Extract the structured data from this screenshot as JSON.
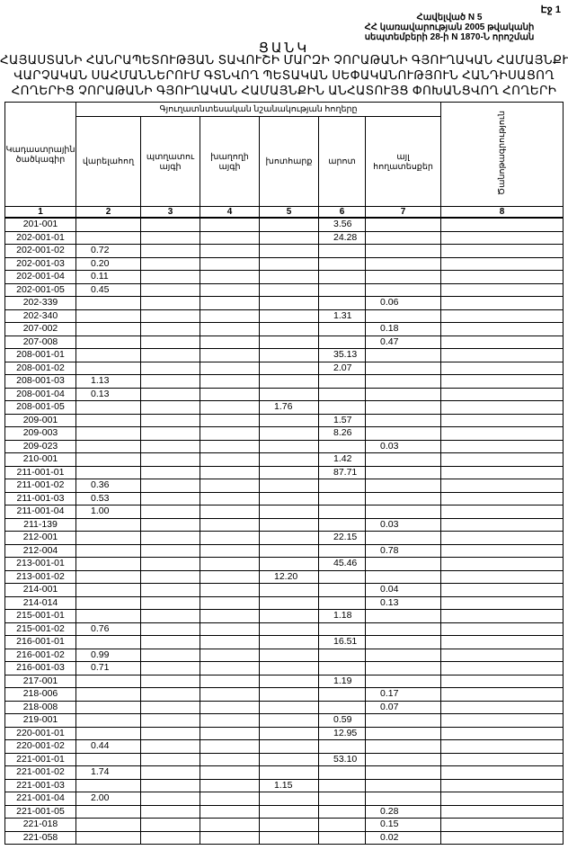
{
  "page_label": "Էջ 1",
  "annex": {
    "line1": "Հավելված N 5",
    "line2": "ՀՀ կառավարության 2005 թվականի",
    "line3": "սեպտեմբերի 28-ի N 1870-Ն որոշման"
  },
  "title": "ՑԱՆԿ",
  "subtitle": [
    "ՀԱՅԱՍՏԱՆԻ ՀԱՆՐԱՊԵՏՈՒԹՅԱՆ ՏԱՎՈՒՇԻ ՄԱՐԶԻ ՉՈՐԱԹԱՆԻ ԳՅՈՒՂԱԿԱՆ ՀԱՄԱՅՆՔԻ",
    "ՎԱՐՉԱԿԱՆ ՍԱՀՄԱՆՆԵՐՈՒՄ ԳՏՆՎՈՂ ՊԵՏԱԿԱՆ ՍԵՓԱԿԱՆՈՒԹՅՈՒՆ ՀԱՆԴԻՍԱՑՈՂ",
    "ՀՈՂԵՐԻՑ ՉՈՐԱԹԱՆԻ ԳՅՈՒՂԱԿԱՆ ՀԱՄԱՅՆՔԻՆ ԱՆՀԱՏՈՒՅՑ ՓՈԽԱՆՑՎՈՂ ՀՈՂԵՐԻ"
  ],
  "table": {
    "code_header": "Կադաստրային ծածկագիր",
    "group_header": "Գյուղատնտեսական նշանակության հողերը",
    "columns": [
      "վարելահող",
      "պտղատու այգի",
      "խաղողի այգի",
      "խոտհարք",
      "արոտ",
      "այլ հողատեսքեր"
    ],
    "note_header": "Ծանոթագրություն",
    "column_numbers": [
      "1",
      "2",
      "3",
      "4",
      "5",
      "6",
      "7",
      "8"
    ],
    "rows": [
      [
        "201-001",
        "",
        "",
        "",
        "",
        "3.56",
        "",
        ""
      ],
      [
        "202-001-01",
        "",
        "",
        "",
        "",
        "24.28",
        "",
        ""
      ],
      [
        "202-001-02",
        "0.72",
        "",
        "",
        "",
        "",
        "",
        ""
      ],
      [
        "202-001-03",
        "0.20",
        "",
        "",
        "",
        "",
        "",
        ""
      ],
      [
        "202-001-04",
        "0.11",
        "",
        "",
        "",
        "",
        "",
        ""
      ],
      [
        "202-001-05",
        "0.45",
        "",
        "",
        "",
        "",
        "",
        ""
      ],
      [
        "202-339",
        "",
        "",
        "",
        "",
        "",
        "0.06",
        ""
      ],
      [
        "202-340",
        "",
        "",
        "",
        "",
        "1.31",
        "",
        ""
      ],
      [
        "207-002",
        "",
        "",
        "",
        "",
        "",
        "0.18",
        ""
      ],
      [
        "207-008",
        "",
        "",
        "",
        "",
        "",
        "0.47",
        ""
      ],
      [
        "208-001-01",
        "",
        "",
        "",
        "",
        "35.13",
        "",
        ""
      ],
      [
        "208-001-02",
        "",
        "",
        "",
        "",
        "2.07",
        "",
        ""
      ],
      [
        "208-001-03",
        "1.13",
        "",
        "",
        "",
        "",
        "",
        ""
      ],
      [
        "208-001-04",
        "0.13",
        "",
        "",
        "",
        "",
        "",
        ""
      ],
      [
        "208-001-05",
        "",
        "",
        "",
        "1.76",
        "",
        "",
        ""
      ],
      [
        "209-001",
        "",
        "",
        "",
        "",
        "1.57",
        "",
        ""
      ],
      [
        "209-003",
        "",
        "",
        "",
        "",
        "8.26",
        "",
        ""
      ],
      [
        "209-023",
        "",
        "",
        "",
        "",
        "",
        "0.03",
        ""
      ],
      [
        "210-001",
        "",
        "",
        "",
        "",
        "1.42",
        "",
        ""
      ],
      [
        "211-001-01",
        "",
        "",
        "",
        "",
        "87.71",
        "",
        ""
      ],
      [
        "211-001-02",
        "0.36",
        "",
        "",
        "",
        "",
        "",
        ""
      ],
      [
        "211-001-03",
        "0.53",
        "",
        "",
        "",
        "",
        "",
        ""
      ],
      [
        "211-001-04",
        "1.00",
        "",
        "",
        "",
        "",
        "",
        ""
      ],
      [
        "211-139",
        "",
        "",
        "",
        "",
        "",
        "0.03",
        ""
      ],
      [
        "212-001",
        "",
        "",
        "",
        "",
        "22.15",
        "",
        ""
      ],
      [
        "212-004",
        "",
        "",
        "",
        "",
        "",
        "0.78",
        ""
      ],
      [
        "213-001-01",
        "",
        "",
        "",
        "",
        "45.46",
        "",
        ""
      ],
      [
        "213-001-02",
        "",
        "",
        "",
        "12.20",
        "",
        "",
        ""
      ],
      [
        "214-001",
        "",
        "",
        "",
        "",
        "",
        "0.04",
        ""
      ],
      [
        "214-014",
        "",
        "",
        "",
        "",
        "",
        "0.13",
        ""
      ],
      [
        "215-001-01",
        "",
        "",
        "",
        "",
        "1.18",
        "",
        ""
      ],
      [
        "215-001-02",
        "0.76",
        "",
        "",
        "",
        "",
        "",
        ""
      ],
      [
        "216-001-01",
        "",
        "",
        "",
        "",
        "16.51",
        "",
        ""
      ],
      [
        "216-001-02",
        "0.99",
        "",
        "",
        "",
        "",
        "",
        ""
      ],
      [
        "216-001-03",
        "0.71",
        "",
        "",
        "",
        "",
        "",
        ""
      ],
      [
        "217-001",
        "",
        "",
        "",
        "",
        "1.19",
        "",
        ""
      ],
      [
        "218-006",
        "",
        "",
        "",
        "",
        "",
        "0.17",
        ""
      ],
      [
        "218-008",
        "",
        "",
        "",
        "",
        "",
        "0.07",
        ""
      ],
      [
        "219-001",
        "",
        "",
        "",
        "",
        "0.59",
        "",
        ""
      ],
      [
        "220-001-01",
        "",
        "",
        "",
        "",
        "12.95",
        "",
        ""
      ],
      [
        "220-001-02",
        "0.44",
        "",
        "",
        "",
        "",
        "",
        ""
      ],
      [
        "221-001-01",
        "",
        "",
        "",
        "",
        "53.10",
        "",
        ""
      ],
      [
        "221-001-02",
        "1.74",
        "",
        "",
        "",
        "",
        "",
        ""
      ],
      [
        "221-001-03",
        "",
        "",
        "",
        "1.15",
        "",
        "",
        ""
      ],
      [
        "221-001-04",
        "2.00",
        "",
        "",
        "",
        "",
        "",
        ""
      ],
      [
        "221-001-05",
        "",
        "",
        "",
        "",
        "",
        "0.28",
        ""
      ],
      [
        "221-018",
        "",
        "",
        "",
        "",
        "",
        "0.15",
        ""
      ],
      [
        "221-058",
        "",
        "",
        "",
        "",
        "",
        "0.02",
        ""
      ]
    ]
  }
}
